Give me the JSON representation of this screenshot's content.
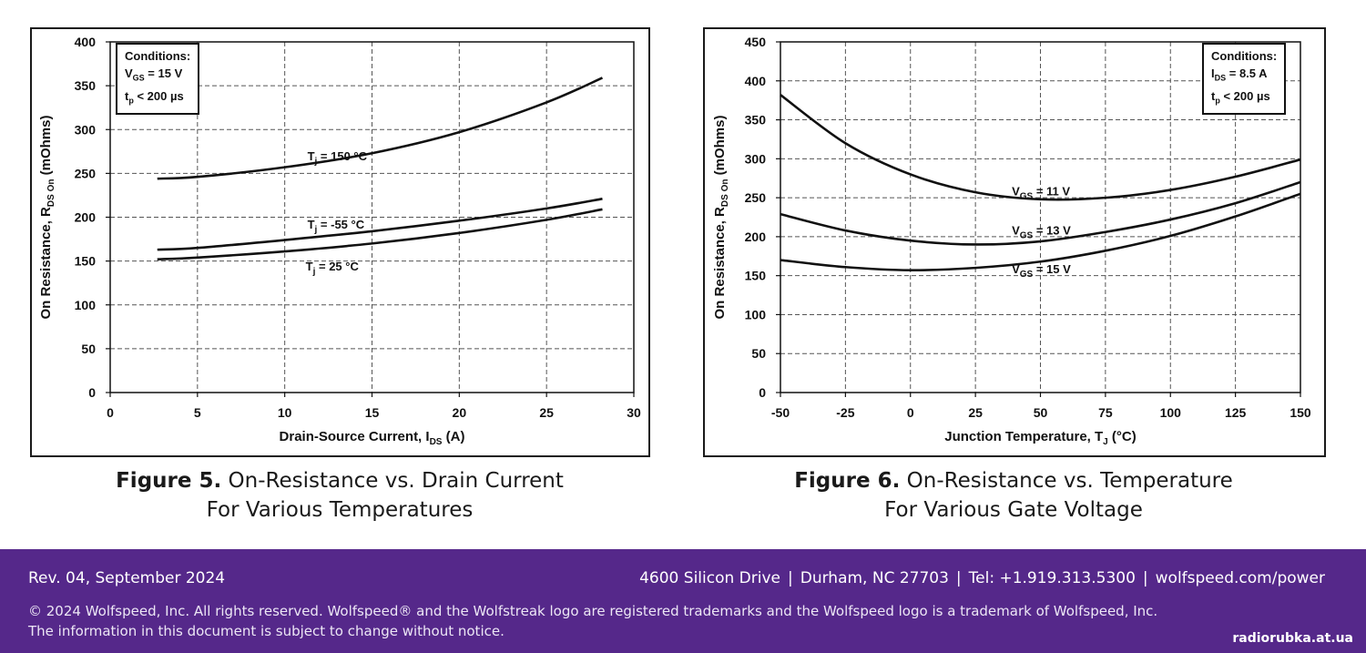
{
  "chart_data": [
    {
      "type": "line",
      "xlabel": "Drain-Source Current, IDS (A)",
      "ylabel": "On Resistance, RDS On (mOhms)",
      "xlim": [
        0,
        30
      ],
      "ylim": [
        0,
        400
      ],
      "xticks": [
        0,
        5,
        10,
        15,
        20,
        25,
        30
      ],
      "yticks": [
        0,
        50,
        100,
        150,
        200,
        250,
        300,
        350,
        400
      ],
      "grid": true,
      "conditions": [
        "Conditions:",
        "VGS = 15 V",
        "tp < 200 µs"
      ],
      "series": [
        {
          "name": "Tj = 150 °C",
          "x": [
            2.7,
            5,
            10,
            15,
            20,
            25,
            28.2
          ],
          "y": [
            244,
            246,
            257,
            273,
            297,
            331,
            359
          ]
        },
        {
          "name": "Tj = -55 °C",
          "x": [
            2.7,
            5,
            10,
            15,
            20,
            25,
            28.2
          ],
          "y": [
            163,
            165,
            174,
            184,
            196,
            210,
            221
          ]
        },
        {
          "name": "Tj = 25 °C",
          "x": [
            2.7,
            5,
            10,
            15,
            20,
            25,
            28.2
          ],
          "y": [
            152,
            154,
            161,
            170,
            182,
            197,
            209
          ]
        }
      ]
    },
    {
      "type": "line",
      "xlabel": "Junction Temperature, TJ (°C)",
      "ylabel": "On Resistance, RDS On (mOhms)",
      "xlim": [
        -50,
        150
      ],
      "ylim": [
        0,
        450
      ],
      "xticks": [
        -50,
        -25,
        0,
        25,
        50,
        75,
        100,
        125,
        150
      ],
      "yticks": [
        0,
        50,
        100,
        150,
        200,
        250,
        300,
        350,
        400,
        450
      ],
      "grid": true,
      "conditions": [
        "Conditions:",
        "IDS = 8.5 A",
        "tp < 200 µs"
      ],
      "series": [
        {
          "name": "VGS = 11 V",
          "x": [
            -50,
            -25,
            0,
            25,
            50,
            75,
            100,
            125,
            150
          ],
          "y": [
            382,
            320,
            280,
            257,
            248,
            250,
            260,
            277,
            299
          ]
        },
        {
          "name": "VGS = 13 V",
          "x": [
            -50,
            -25,
            0,
            25,
            50,
            75,
            100,
            125,
            150
          ],
          "y": [
            229,
            208,
            195,
            190,
            194,
            206,
            222,
            243,
            270
          ]
        },
        {
          "name": "VGS = 15 V",
          "x": [
            -50,
            -25,
            0,
            25,
            50,
            75,
            100,
            125,
            150
          ],
          "y": [
            170,
            161,
            157,
            160,
            168,
            182,
            201,
            226,
            255
          ]
        }
      ]
    }
  ],
  "captions": {
    "fig5_bold": "Figure 5.",
    "fig5_line1": "On-Resistance vs. Drain Current",
    "fig5_line2": "For Various Temperatures",
    "fig6_bold": "Figure 6.",
    "fig6_line1": "On-Resistance vs. Temperature",
    "fig6_line2": "For Various Gate Voltage"
  },
  "footer": {
    "revision": "Rev. 04, September 2024",
    "address": "4600 Silicon Drive",
    "city": "Durham, NC 27703",
    "phone": "Tel: +1.919.313.5300",
    "web": "wolfspeed.com/power",
    "separator": "|",
    "copyright": "© 2024 Wolfspeed, Inc. All rights reserved. Wolfspeed® and the Wolfstreak logo are registered trademarks and the Wolfspeed logo is a trademark of Wolfspeed, Inc.",
    "notice": "The information in this document is subject to change without notice.",
    "watermark": "radiorubka.at.ua"
  },
  "colors": {
    "footer_bg": "#55288a",
    "curve": "#111111",
    "grid": "#555555"
  }
}
